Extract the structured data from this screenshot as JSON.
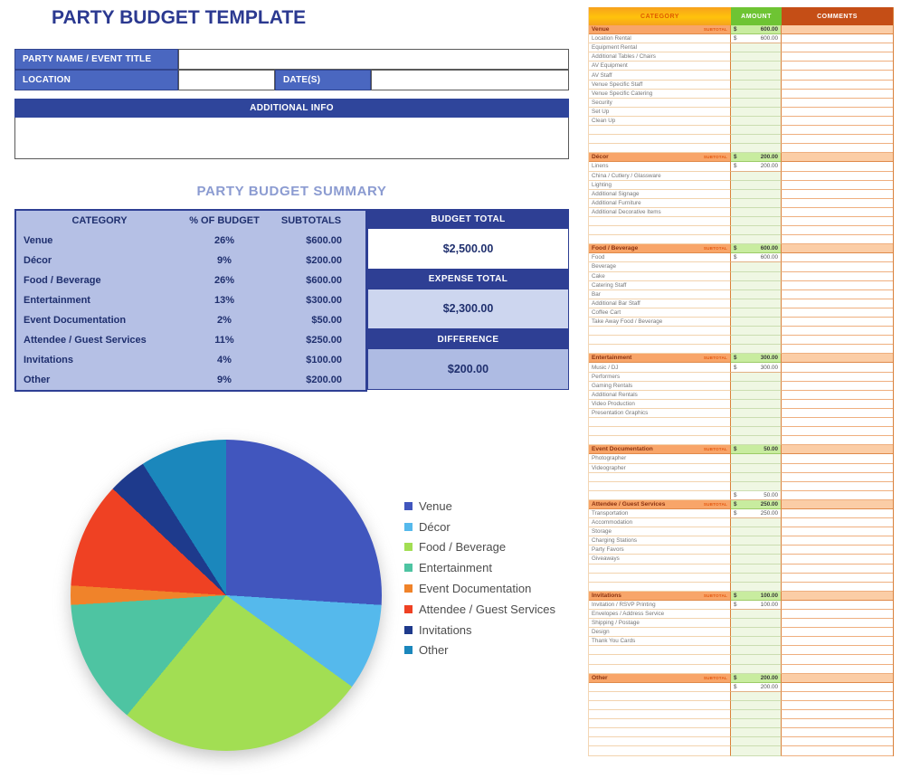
{
  "title": "PARTY BUDGET TEMPLATE",
  "form": {
    "party_name_label": "PARTY NAME / EVENT TITLE",
    "party_name_value": "",
    "location_label": "LOCATION",
    "location_value": "",
    "dates_label": "DATE(S)",
    "dates_value": "",
    "additional_info_label": "ADDITIONAL INFO",
    "additional_info_value": ""
  },
  "summary": {
    "heading": "PARTY BUDGET SUMMARY",
    "columns": [
      "CATEGORY",
      "% OF BUDGET",
      "SUBTOTALS"
    ],
    "rows": [
      {
        "category": "Venue",
        "pct": "26%",
        "subtotal": "$600.00"
      },
      {
        "category": "Décor",
        "pct": "9%",
        "subtotal": "$200.00"
      },
      {
        "category": "Food / Beverage",
        "pct": "26%",
        "subtotal": "$600.00"
      },
      {
        "category": "Entertainment",
        "pct": "13%",
        "subtotal": "$300.00"
      },
      {
        "category": "Event Documentation",
        "pct": "2%",
        "subtotal": "$50.00"
      },
      {
        "category": "Attendee / Guest Services",
        "pct": "11%",
        "subtotal": "$250.00"
      },
      {
        "category": "Invitations",
        "pct": "4%",
        "subtotal": "$100.00"
      },
      {
        "category": "Other",
        "pct": "9%",
        "subtotal": "$200.00"
      }
    ],
    "totals": [
      {
        "label": "BUDGET TOTAL",
        "value": "$2,500.00"
      },
      {
        "label": "EXPENSE TOTAL",
        "value": "$2,300.00"
      },
      {
        "label": "DIFFERENCE",
        "value": "$200.00"
      }
    ]
  },
  "chart_data": {
    "type": "pie",
    "title": "",
    "categories": [
      "Venue",
      "Décor",
      "Food / Beverage",
      "Entertainment",
      "Event Documentation",
      "Attendee / Guest Services",
      "Invitations",
      "Other"
    ],
    "values": [
      26,
      9,
      26,
      13,
      2,
      11,
      4,
      9
    ],
    "unit": "%",
    "colors": [
      "#4156BE",
      "#55B9EC",
      "#A2DE53",
      "#4EC4A2",
      "#F0832A",
      "#EF4123",
      "#1E3A8C",
      "#1B87BC"
    ],
    "legend_position": "right",
    "start_angle_deg": 0,
    "direction": "clockwise"
  },
  "sheet": {
    "headers": [
      "CATEGORY",
      "AMOUNT",
      "COMMENTS"
    ],
    "subtotal_label": "SUBTOTAL",
    "currency": "$",
    "sections": [
      {
        "name": "Venue",
        "subtotal": "600.00",
        "rows": [
          {
            "label": "Location Rental",
            "amount": "600.00"
          },
          {
            "label": "Equipment Rental",
            "amount": ""
          },
          {
            "label": "Additional Tables / Chairs",
            "amount": ""
          },
          {
            "label": "AV Equipment",
            "amount": ""
          },
          {
            "label": "AV Staff",
            "amount": ""
          },
          {
            "label": "Venue Specific Staff",
            "amount": ""
          },
          {
            "label": "Venue Specific Catering",
            "amount": ""
          },
          {
            "label": "Security",
            "amount": ""
          },
          {
            "label": "Set Up",
            "amount": ""
          },
          {
            "label": "Clean Up",
            "amount": ""
          },
          {
            "label": "",
            "amount": ""
          },
          {
            "label": "",
            "amount": ""
          },
          {
            "label": "",
            "amount": ""
          }
        ]
      },
      {
        "name": "Décor",
        "subtotal": "200.00",
        "rows": [
          {
            "label": "Linens",
            "amount": "200.00"
          },
          {
            "label": "China / Cutlery / Glassware",
            "amount": ""
          },
          {
            "label": "Lighting",
            "amount": ""
          },
          {
            "label": "Additional Signage",
            "amount": ""
          },
          {
            "label": "Additional Furniture",
            "amount": ""
          },
          {
            "label": "Additional Decorative Items",
            "amount": ""
          },
          {
            "label": "",
            "amount": ""
          },
          {
            "label": "",
            "amount": ""
          },
          {
            "label": "",
            "amount": ""
          }
        ]
      },
      {
        "name": "Food / Beverage",
        "subtotal": "600.00",
        "rows": [
          {
            "label": "Food",
            "amount": "600.00"
          },
          {
            "label": "Beverage",
            "amount": ""
          },
          {
            "label": "Cake",
            "amount": ""
          },
          {
            "label": "Catering Staff",
            "amount": ""
          },
          {
            "label": "Bar",
            "amount": ""
          },
          {
            "label": "Additional Bar Staff",
            "amount": ""
          },
          {
            "label": "Coffee Cart",
            "amount": ""
          },
          {
            "label": "Take Away Food / Beverage",
            "amount": ""
          },
          {
            "label": "",
            "amount": ""
          },
          {
            "label": "",
            "amount": ""
          },
          {
            "label": "",
            "amount": ""
          }
        ]
      },
      {
        "name": "Entertainment",
        "subtotal": "300.00",
        "rows": [
          {
            "label": "Music / DJ",
            "amount": "300.00"
          },
          {
            "label": "Performers",
            "amount": ""
          },
          {
            "label": "Gaming Rentals",
            "amount": ""
          },
          {
            "label": "Additional Rentals",
            "amount": ""
          },
          {
            "label": "Video Production",
            "amount": ""
          },
          {
            "label": "Presentation Graphics",
            "amount": ""
          },
          {
            "label": "",
            "amount": ""
          },
          {
            "label": "",
            "amount": ""
          },
          {
            "label": "",
            "amount": ""
          }
        ]
      },
      {
        "name": "Event Documentation",
        "subtotal": "50.00",
        "rows": [
          {
            "label": "Photographer",
            "amount": ""
          },
          {
            "label": "Videographer",
            "amount": ""
          },
          {
            "label": "",
            "amount": ""
          },
          {
            "label": "",
            "amount": ""
          },
          {
            "label": "",
            "amount": "50.00"
          }
        ]
      },
      {
        "name": "Attendee / Guest Services",
        "subtotal": "250.00",
        "rows": [
          {
            "label": "Transportation",
            "amount": "250.00"
          },
          {
            "label": "Accommodation",
            "amount": ""
          },
          {
            "label": "Storage",
            "amount": ""
          },
          {
            "label": "Charging Stations",
            "amount": ""
          },
          {
            "label": "Party Favors",
            "amount": ""
          },
          {
            "label": "Giveaways",
            "amount": ""
          },
          {
            "label": "",
            "amount": ""
          },
          {
            "label": "",
            "amount": ""
          },
          {
            "label": "",
            "amount": ""
          }
        ]
      },
      {
        "name": "Invitations",
        "subtotal": "100.00",
        "rows": [
          {
            "label": "Invitation / RSVP Printing",
            "amount": "100.00"
          },
          {
            "label": "Envelopes / Address Service",
            "amount": ""
          },
          {
            "label": "Shipping / Postage",
            "amount": ""
          },
          {
            "label": "Design",
            "amount": ""
          },
          {
            "label": "Thank You Cards",
            "amount": ""
          },
          {
            "label": "",
            "amount": ""
          },
          {
            "label": "",
            "amount": ""
          },
          {
            "label": "",
            "amount": ""
          }
        ]
      },
      {
        "name": "Other",
        "subtotal": "200.00",
        "rows": [
          {
            "label": "",
            "amount": "200.00"
          },
          {
            "label": "",
            "amount": ""
          },
          {
            "label": "",
            "amount": ""
          },
          {
            "label": "",
            "amount": ""
          },
          {
            "label": "",
            "amount": ""
          },
          {
            "label": "",
            "amount": ""
          },
          {
            "label": "",
            "amount": ""
          },
          {
            "label": "",
            "amount": ""
          }
        ]
      }
    ]
  }
}
